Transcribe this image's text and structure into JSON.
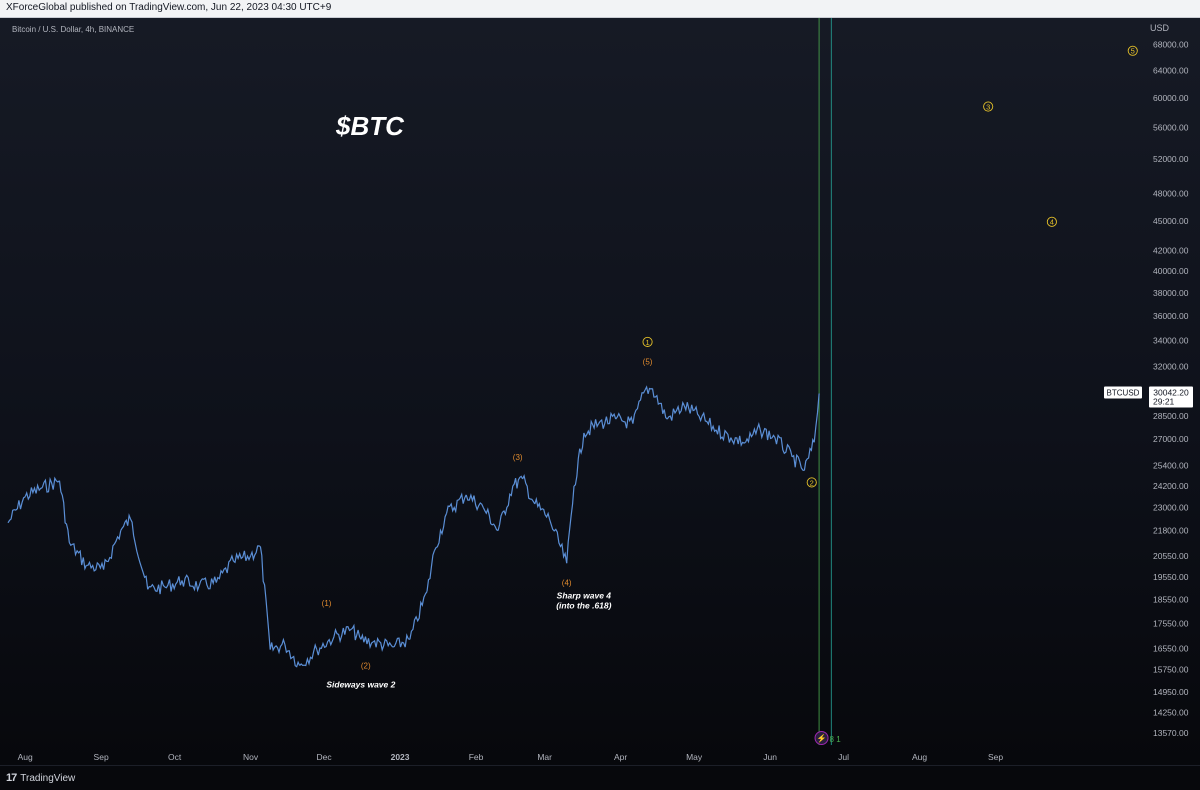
{
  "header": {
    "text": "XForceGlobal published on TradingView.com, Jun 22, 2023 04:30 UTC+9"
  },
  "chart_data": {
    "type": "line",
    "symbol_label": "Bitcoin / U.S. Dollar, 4h, BINANCE",
    "title": "$BTC",
    "currency": "USD",
    "y_scale": "log",
    "ylim": [
      13200,
      72000
    ],
    "x_ticks": [
      "Aug",
      "Sep",
      "Oct",
      "Nov",
      "Dec",
      "2023",
      "Feb",
      "Mar",
      "Apr",
      "May",
      "Jun",
      "Jul",
      "Aug",
      "Sep"
    ],
    "y_ticks": [
      "68000.00",
      "64000.00",
      "60000.00",
      "56000.00",
      "52000.00",
      "48000.00",
      "45000.00",
      "42000.00",
      "40000.00",
      "38000.00",
      "36000.00",
      "34000.00",
      "32000.00",
      "28500.00",
      "27000.00",
      "25400.00",
      "24200.00",
      "23000.00",
      "21800.00",
      "20550.00",
      "19550.00",
      "18550.00",
      "17550.00",
      "16550.00",
      "15750.00",
      "14950.00",
      "14250.00",
      "13570.00"
    ],
    "x": [
      "2022-07-25",
      "2022-08-01",
      "2022-08-08",
      "2022-08-15",
      "2022-08-19",
      "2022-08-26",
      "2022-09-02",
      "2022-09-09",
      "2022-09-13",
      "2022-09-20",
      "2022-09-27",
      "2022-10-04",
      "2022-10-11",
      "2022-10-18",
      "2022-10-25",
      "2022-11-01",
      "2022-11-05",
      "2022-11-09",
      "2022-11-15",
      "2022-11-21",
      "2022-11-28",
      "2022-12-05",
      "2022-12-12",
      "2022-12-16",
      "2022-12-21",
      "2022-12-29",
      "2023-01-05",
      "2023-01-12",
      "2023-01-15",
      "2023-01-20",
      "2023-01-28",
      "2023-02-04",
      "2023-02-10",
      "2023-02-16",
      "2023-02-20",
      "2023-02-25",
      "2023-03-03",
      "2023-03-10",
      "2023-03-13",
      "2023-03-17",
      "2023-03-23",
      "2023-03-30",
      "2023-04-06",
      "2023-04-11",
      "2023-04-14",
      "2023-04-20",
      "2023-04-27",
      "2023-05-03",
      "2023-05-10",
      "2023-05-16",
      "2023-05-22",
      "2023-05-28",
      "2023-06-03",
      "2023-06-10",
      "2023-06-15",
      "2023-06-19",
      "2023-06-21"
    ],
    "close": [
      22200,
      23600,
      24100,
      24500,
      21200,
      20100,
      19900,
      21800,
      22400,
      19000,
      19100,
      19400,
      19150,
      19300,
      20300,
      20550,
      21000,
      16500,
      16700,
      15900,
      16500,
      17000,
      17300,
      16900,
      16800,
      16600,
      16900,
      18900,
      20800,
      22700,
      23700,
      23000,
      21800,
      24200,
      24600,
      23200,
      22400,
      20200,
      24200,
      27400,
      28000,
      28300,
      28000,
      30300,
      30400,
      28300,
      29200,
      28500,
      27600,
      27100,
      26800,
      27600,
      27100,
      25900,
      25100,
      26800,
      30042
    ]
  },
  "annotations": [
    {
      "text": "(1)",
      "x": "2022-12-02",
      "y": 18400,
      "kind": "minor"
    },
    {
      "text": "(2)",
      "x": "2022-12-18",
      "y": 15900,
      "kind": "minor"
    },
    {
      "text": "(3)",
      "x": "2023-02-18",
      "y": 25900,
      "kind": "minor"
    },
    {
      "text": "(4)",
      "x": "2023-03-10",
      "y": 19300,
      "kind": "minor"
    },
    {
      "text": "(5)",
      "x": "2023-04-12",
      "y": 32400,
      "kind": "minor"
    },
    {
      "text": "1",
      "x": "2023-04-12",
      "y": 33900,
      "kind": "major"
    },
    {
      "text": "2",
      "x": "2023-06-18",
      "y": 24400,
      "kind": "major"
    },
    {
      "text": "3",
      "x": "2023-08-29",
      "y": 58800,
      "kind": "major"
    },
    {
      "text": "4",
      "x": "2023-09-24",
      "y": 44900,
      "kind": "major"
    },
    {
      "text": "5",
      "x": "2023-10-27",
      "y": 67000,
      "kind": "major"
    }
  ],
  "notes": [
    {
      "lines": [
        "Sideways wave 2"
      ],
      "x": "2022-12-16",
      "y": 15100
    },
    {
      "lines": [
        "Sharp wave 4",
        "(into the .618)"
      ],
      "x": "2023-03-17",
      "y": 18600
    }
  ],
  "vlines": [
    {
      "x": "2023-06-21",
      "color": "#4caf50"
    },
    {
      "x": "2023-06-26",
      "color": "#26a69a"
    }
  ],
  "last_price": {
    "symbol": "BTCUSD",
    "price": "30042.20",
    "countdown": "29:21",
    "value": 30042.2
  },
  "badge": {
    "label": "8 1"
  },
  "footer": {
    "brand": "TradingView"
  },
  "colors": {
    "series": "#5b8fd6",
    "minor_label": "#e08a2e",
    "major_label": "#e6c229",
    "axis_text": "#b2b5be",
    "grid": "#1c2030"
  }
}
